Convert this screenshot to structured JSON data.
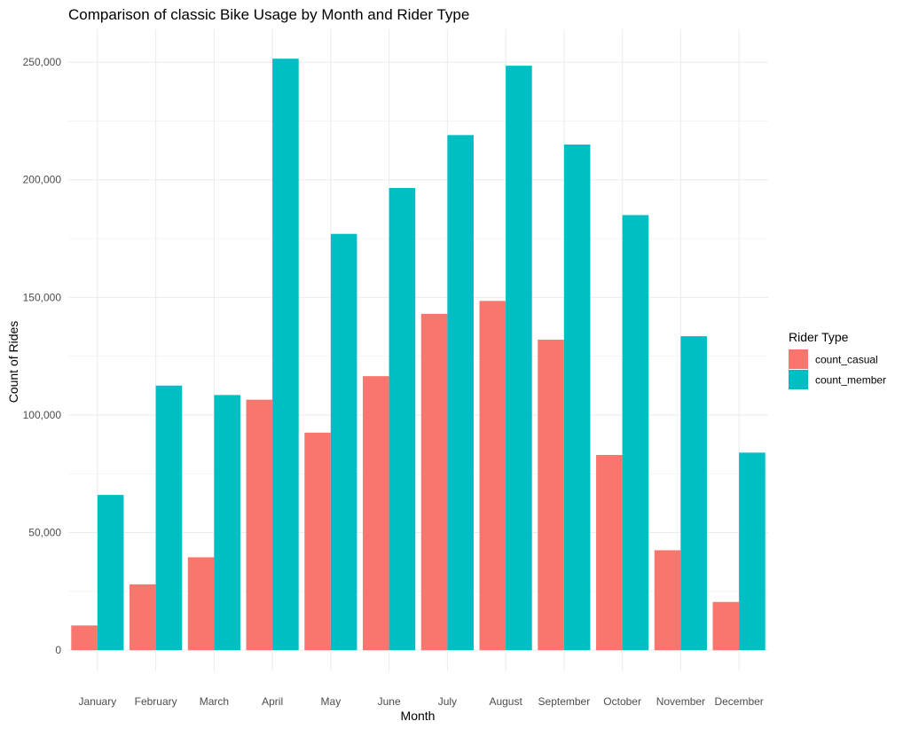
{
  "chart_data": {
    "type": "bar",
    "title": "Comparison of classic Bike Usage by Month and Rider Type",
    "xlabel": "Month",
    "ylabel": "Count of Rides",
    "categories": [
      "January",
      "February",
      "March",
      "April",
      "May",
      "June",
      "July",
      "August",
      "September",
      "October",
      "November",
      "December"
    ],
    "series": [
      {
        "name": "count_casual",
        "color": "#F8766D",
        "values": [
          10500,
          28000,
          39500,
          106500,
          92500,
          116500,
          143000,
          148500,
          132000,
          83000,
          42500,
          20500
        ]
      },
      {
        "name": "count_member",
        "color": "#00BFC4",
        "values": [
          66000,
          112500,
          108500,
          251500,
          177000,
          196500,
          219000,
          248500,
          215000,
          185000,
          133500,
          84000
        ]
      }
    ],
    "ylim": [
      -9000,
      264000
    ],
    "yticks": [
      0,
      50000,
      100000,
      150000,
      200000,
      250000
    ],
    "ytick_labels": [
      "0",
      "50,000",
      "100,000",
      "150,000",
      "200,000",
      "250,000"
    ],
    "grid": true,
    "legend": {
      "title": "Rider Type",
      "position": "right"
    }
  }
}
